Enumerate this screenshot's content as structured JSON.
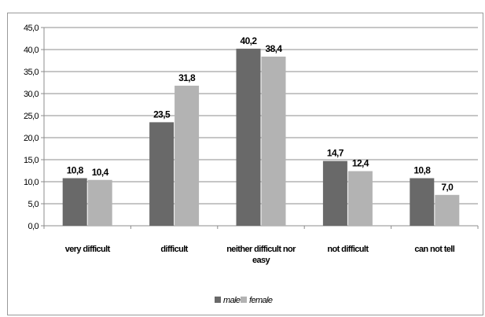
{
  "chart_data": {
    "type": "bar",
    "categories": [
      "very difficult",
      "difficult",
      "neither difficult nor easy",
      "not difficult",
      "can not tell"
    ],
    "series": [
      {
        "name": "male",
        "values": [
          10.8,
          23.5,
          40.2,
          14.7,
          10.8
        ],
        "color": "#696969"
      },
      {
        "name": "female",
        "values": [
          10.4,
          31.8,
          38.4,
          12.4,
          7.0
        ],
        "color": "#b3b3b3"
      }
    ],
    "data_labels": [
      [
        "10,8",
        "23,5",
        "40,2",
        "14,7",
        "10,8"
      ],
      [
        "10,4",
        "31,8",
        "38,4",
        "12,4",
        "7,0"
      ]
    ],
    "category_labels": [
      [
        "very difficult"
      ],
      [
        "difficult"
      ],
      [
        "neither difficult nor",
        "easy"
      ],
      [
        "not difficult"
      ],
      [
        "can not tell"
      ]
    ],
    "yticks": [
      "0,0",
      "5,0",
      "10,0",
      "15,0",
      "20,0",
      "25,0",
      "30,0",
      "35,0",
      "40,0",
      "45,0"
    ],
    "ylim": [
      0,
      45
    ],
    "ytick_step": 5,
    "grid": true,
    "legend_position": "bottom",
    "title": "",
    "xlabel": "",
    "ylabel": ""
  }
}
